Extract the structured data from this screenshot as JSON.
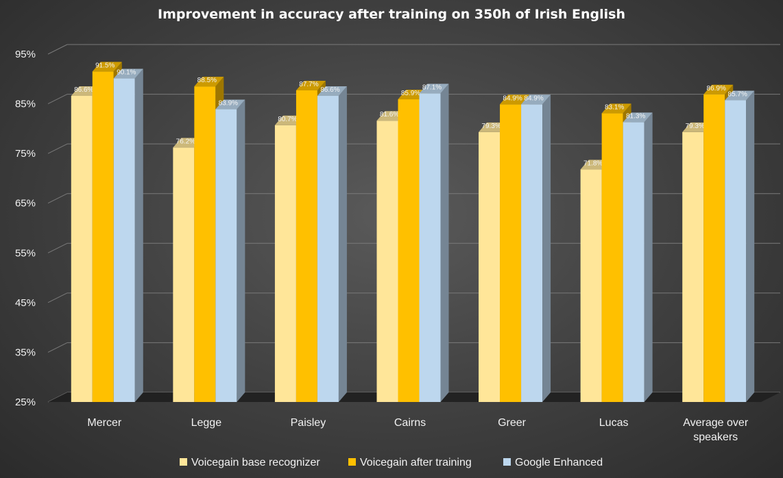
{
  "chart_data": {
    "type": "bar",
    "title": "Improvement in accuracy after training on 350h of Irish English",
    "xlabel": "",
    "ylabel": "",
    "ylim": [
      25,
      95
    ],
    "yticks": [
      "25%",
      "35%",
      "45%",
      "55%",
      "65%",
      "75%",
      "85%",
      "95%"
    ],
    "ytick_values": [
      25,
      35,
      45,
      55,
      65,
      75,
      85,
      95
    ],
    "categories": [
      "Mercer",
      "Legge",
      "Paisley",
      "Cairns",
      "Greer",
      "Lucas",
      "Average over speakers"
    ],
    "series": [
      {
        "name": "Voicegain base recognizer",
        "color": "#ffe699",
        "values": [
          86.6,
          76.2,
          80.7,
          81.6,
          79.3,
          71.8,
          79.3
        ],
        "labels": [
          "86.6%",
          "76.2%",
          "80.7%",
          "81.6%",
          "79.3%",
          "71.8%",
          "79.3%"
        ]
      },
      {
        "name": "Voicegain after training",
        "color": "#ffc000",
        "values": [
          91.5,
          88.5,
          87.7,
          85.9,
          84.9,
          83.1,
          86.9
        ],
        "labels": [
          "91.5%",
          "88.5%",
          "87.7%",
          "85.9%",
          "84.9%",
          "83.1%",
          "86.9%"
        ]
      },
      {
        "name": "Google Enhanced",
        "color": "#bdd7ee",
        "values": [
          90.1,
          83.9,
          86.6,
          87.1,
          84.9,
          81.3,
          85.7
        ],
        "labels": [
          "90.1%",
          "83.9%",
          "86.6%",
          "87.1%",
          "84.9%",
          "81.3%",
          "85.7%"
        ]
      }
    ],
    "grid": true,
    "legend_position": "bottom",
    "style": "3d-column"
  }
}
